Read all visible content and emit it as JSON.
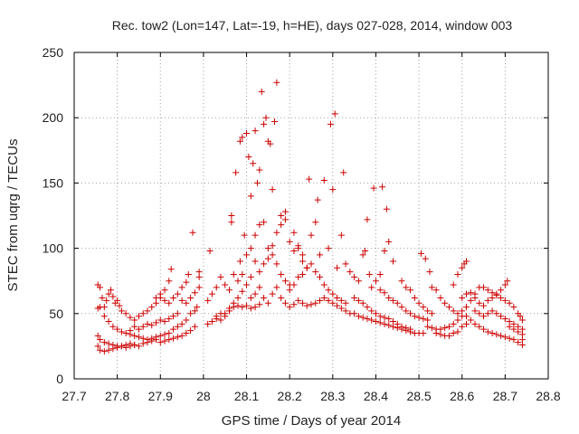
{
  "chart_data": {
    "type": "scatter",
    "title": "Rec. tow2 (Lon=147, Lat=-19, h=HE), days 027-028, 2014, window 003",
    "xlabel": "GPS time / Days of year 2014",
    "ylabel": "STEC from uqrg / TECUs",
    "xlim": [
      27.7,
      28.8
    ],
    "ylim": [
      0,
      250
    ],
    "xticks": [
      "27.7",
      "27.8",
      "27.9",
      "28",
      "28.1",
      "28.2",
      "28.3",
      "28.4",
      "28.5",
      "28.6",
      "28.7",
      "28.8"
    ],
    "yticks": [
      "0",
      "50",
      "100",
      "150",
      "200",
      "250"
    ],
    "grid": true,
    "marker": "plus",
    "color": "#cc0000",
    "points": [
      [
        27.755,
        72
      ],
      [
        27.76,
        70
      ],
      [
        27.765,
        62
      ],
      [
        27.77,
        55
      ],
      [
        27.775,
        60
      ],
      [
        27.78,
        65
      ],
      [
        27.785,
        68
      ],
      [
        27.79,
        63
      ],
      [
        27.795,
        58
      ],
      [
        27.8,
        60
      ],
      [
        27.805,
        56
      ],
      [
        27.81,
        52
      ],
      [
        27.755,
        54
      ],
      [
        27.76,
        55
      ],
      [
        27.77,
        48
      ],
      [
        27.78,
        44
      ],
      [
        27.79,
        40
      ],
      [
        27.8,
        38
      ],
      [
        27.81,
        36
      ],
      [
        27.82,
        35
      ],
      [
        27.83,
        37
      ],
      [
        27.84,
        40
      ],
      [
        27.755,
        33
      ],
      [
        27.76,
        30
      ],
      [
        27.77,
        28
      ],
      [
        27.78,
        27
      ],
      [
        27.79,
        26
      ],
      [
        27.8,
        25
      ],
      [
        27.81,
        25
      ],
      [
        27.82,
        26
      ],
      [
        27.83,
        27
      ],
      [
        27.84,
        26
      ],
      [
        27.85,
        25
      ],
      [
        27.86,
        27
      ],
      [
        27.87,
        28
      ],
      [
        27.88,
        29
      ],
      [
        27.89,
        30
      ],
      [
        27.755,
        25
      ],
      [
        27.76,
        22
      ],
      [
        27.77,
        21
      ],
      [
        27.78,
        22
      ],
      [
        27.79,
        23
      ],
      [
        27.8,
        24
      ],
      [
        27.81,
        25
      ],
      [
        27.82,
        24
      ],
      [
        27.83,
        25
      ],
      [
        27.84,
        26
      ],
      [
        27.82,
        50
      ],
      [
        27.83,
        47
      ],
      [
        27.84,
        45
      ],
      [
        27.85,
        48
      ],
      [
        27.86,
        50
      ],
      [
        27.87,
        52
      ],
      [
        27.88,
        55
      ],
      [
        27.89,
        58
      ],
      [
        27.9,
        62
      ],
      [
        27.91,
        68
      ],
      [
        27.92,
        75
      ],
      [
        27.925,
        84
      ],
      [
        27.83,
        34
      ],
      [
        27.84,
        33
      ],
      [
        27.85,
        32
      ],
      [
        27.86,
        31
      ],
      [
        27.87,
        30
      ],
      [
        27.88,
        31
      ],
      [
        27.89,
        32
      ],
      [
        27.9,
        33
      ],
      [
        27.91,
        34
      ],
      [
        27.92,
        35
      ],
      [
        27.85,
        38
      ],
      [
        27.86,
        40
      ],
      [
        27.87,
        42
      ],
      [
        27.88,
        41
      ],
      [
        27.89,
        43
      ],
      [
        27.9,
        45
      ],
      [
        27.91,
        44
      ],
      [
        27.92,
        46
      ],
      [
        27.93,
        48
      ],
      [
        27.94,
        50
      ],
      [
        27.89,
        62
      ],
      [
        27.9,
        65
      ],
      [
        27.91,
        60
      ],
      [
        27.92,
        58
      ],
      [
        27.93,
        62
      ],
      [
        27.94,
        65
      ],
      [
        27.95,
        70
      ],
      [
        27.96,
        74
      ],
      [
        27.965,
        80
      ],
      [
        27.9,
        28
      ],
      [
        27.91,
        29
      ],
      [
        27.92,
        30
      ],
      [
        27.93,
        31
      ],
      [
        27.94,
        32
      ],
      [
        27.95,
        33
      ],
      [
        27.96,
        35
      ],
      [
        27.97,
        37
      ],
      [
        27.98,
        40
      ],
      [
        27.93,
        38
      ],
      [
        27.94,
        40
      ],
      [
        27.95,
        42
      ],
      [
        27.96,
        45
      ],
      [
        27.97,
        50
      ],
      [
        27.975,
        112
      ],
      [
        27.98,
        52
      ],
      [
        27.985,
        55
      ],
      [
        27.95,
        60
      ],
      [
        27.96,
        58
      ],
      [
        27.97,
        62
      ],
      [
        27.98,
        66
      ],
      [
        27.99,
        70
      ],
      [
        27.99,
        78
      ],
      [
        27.99,
        82
      ],
      [
        28.01,
        42
      ],
      [
        28.02,
        44
      ],
      [
        28.03,
        46
      ],
      [
        28.04,
        50
      ],
      [
        28.05,
        48
      ],
      [
        28.06,
        52
      ],
      [
        28.07,
        55
      ],
      [
        28.08,
        56
      ],
      [
        28.09,
        55
      ],
      [
        28.1,
        56
      ],
      [
        28.11,
        54
      ],
      [
        28.12,
        55
      ],
      [
        28.13,
        57
      ],
      [
        28.01,
        60
      ],
      [
        28.015,
        98
      ],
      [
        28.02,
        65
      ],
      [
        28.03,
        70
      ],
      [
        28.04,
        78
      ],
      [
        28.05,
        72
      ],
      [
        28.06,
        68
      ],
      [
        28.065,
        120
      ],
      [
        28.065,
        125
      ],
      [
        28.07,
        80
      ],
      [
        28.075,
        158
      ],
      [
        28.08,
        75
      ],
      [
        28.085,
        90
      ],
      [
        28.09,
        80
      ],
      [
        28.03,
        48
      ],
      [
        28.04,
        45
      ],
      [
        28.05,
        50
      ],
      [
        28.06,
        54
      ],
      [
        28.07,
        58
      ],
      [
        28.08,
        62
      ],
      [
        28.09,
        67
      ],
      [
        28.1,
        72
      ],
      [
        28.11,
        78
      ],
      [
        28.12,
        90
      ],
      [
        28.085,
        182
      ],
      [
        28.09,
        185
      ],
      [
        28.095,
        110
      ],
      [
        28.1,
        188
      ],
      [
        28.105,
        170
      ],
      [
        28.11,
        140
      ],
      [
        28.115,
        165
      ],
      [
        28.12,
        190
      ],
      [
        28.125,
        150
      ],
      [
        28.13,
        160
      ],
      [
        28.135,
        220
      ],
      [
        28.14,
        195
      ],
      [
        28.145,
        200
      ],
      [
        28.15,
        182
      ],
      [
        28.155,
        180
      ],
      [
        28.16,
        145
      ],
      [
        28.165,
        197
      ],
      [
        28.17,
        227
      ],
      [
        28.11,
        62
      ],
      [
        28.12,
        65
      ],
      [
        28.13,
        70
      ],
      [
        28.14,
        62
      ],
      [
        28.15,
        58
      ],
      [
        28.16,
        65
      ],
      [
        28.17,
        70
      ],
      [
        28.18,
        62
      ],
      [
        28.19,
        58
      ],
      [
        28.2,
        55
      ],
      [
        28.21,
        57
      ],
      [
        28.22,
        60
      ],
      [
        28.1,
        95
      ],
      [
        28.11,
        100
      ],
      [
        28.12,
        110
      ],
      [
        28.13,
        118
      ],
      [
        28.14,
        120
      ],
      [
        28.15,
        100
      ],
      [
        28.16,
        95
      ],
      [
        28.17,
        88
      ],
      [
        28.18,
        80
      ],
      [
        28.19,
        75
      ],
      [
        28.2,
        72
      ],
      [
        28.13,
        82
      ],
      [
        28.14,
        88
      ],
      [
        28.15,
        92
      ],
      [
        28.16,
        102
      ],
      [
        28.17,
        112
      ],
      [
        28.18,
        118
      ],
      [
        28.19,
        122
      ],
      [
        28.2,
        105
      ],
      [
        28.21,
        98
      ],
      [
        28.22,
        100
      ],
      [
        28.23,
        95
      ],
      [
        28.18,
        125
      ],
      [
        28.19,
        128
      ],
      [
        28.21,
        112
      ],
      [
        28.22,
        102
      ],
      [
        28.23,
        90
      ],
      [
        28.24,
        85
      ],
      [
        28.245,
        153
      ],
      [
        28.25,
        110
      ],
      [
        28.26,
        120
      ],
      [
        28.265,
        137
      ],
      [
        28.27,
        95
      ],
      [
        28.28,
        152
      ],
      [
        28.29,
        100
      ],
      [
        28.295,
        195
      ],
      [
        28.3,
        145
      ],
      [
        28.305,
        203
      ],
      [
        28.31,
        85
      ],
      [
        28.32,
        110
      ],
      [
        28.325,
        158
      ],
      [
        28.2,
        68
      ],
      [
        28.21,
        72
      ],
      [
        28.22,
        78
      ],
      [
        28.23,
        80
      ],
      [
        28.24,
        85
      ],
      [
        28.25,
        88
      ],
      [
        28.26,
        82
      ],
      [
        28.27,
        78
      ],
      [
        28.28,
        72
      ],
      [
        28.29,
        68
      ],
      [
        28.3,
        65
      ],
      [
        28.31,
        62
      ],
      [
        28.32,
        60
      ],
      [
        28.33,
        58
      ],
      [
        28.23,
        58
      ],
      [
        28.24,
        56
      ],
      [
        28.25,
        57
      ],
      [
        28.26,
        58
      ],
      [
        28.27,
        60
      ],
      [
        28.28,
        62
      ],
      [
        28.29,
        60
      ],
      [
        28.3,
        58
      ],
      [
        28.31,
        56
      ],
      [
        28.32,
        54
      ],
      [
        28.33,
        52
      ],
      [
        28.34,
        50
      ],
      [
        28.33,
        88
      ],
      [
        28.34,
        82
      ],
      [
        28.35,
        78
      ],
      [
        28.36,
        75
      ],
      [
        28.37,
        95
      ],
      [
        28.375,
        98
      ],
      [
        28.38,
        122
      ],
      [
        28.385,
        80
      ],
      [
        28.39,
        70
      ],
      [
        28.395,
        146
      ],
      [
        28.4,
        75
      ],
      [
        28.41,
        80
      ],
      [
        28.415,
        147
      ],
      [
        28.42,
        98
      ],
      [
        28.425,
        130
      ],
      [
        28.43,
        105
      ],
      [
        28.44,
        90
      ],
      [
        28.35,
        62
      ],
      [
        28.36,
        60
      ],
      [
        28.37,
        58
      ],
      [
        28.38,
        55
      ],
      [
        28.39,
        52
      ],
      [
        28.4,
        50
      ],
      [
        28.41,
        48
      ],
      [
        28.42,
        47
      ],
      [
        28.43,
        46
      ],
      [
        28.44,
        44
      ],
      [
        28.45,
        42
      ],
      [
        28.46,
        40
      ],
      [
        28.47,
        39
      ],
      [
        28.48,
        38
      ],
      [
        28.35,
        50
      ],
      [
        28.36,
        48
      ],
      [
        28.37,
        47
      ],
      [
        28.38,
        46
      ],
      [
        28.39,
        45
      ],
      [
        28.4,
        44
      ],
      [
        28.41,
        43
      ],
      [
        28.42,
        42
      ],
      [
        28.43,
        41
      ],
      [
        28.44,
        40
      ],
      [
        28.45,
        39
      ],
      [
        28.46,
        38
      ],
      [
        28.47,
        37
      ],
      [
        28.48,
        36
      ],
      [
        28.49,
        35
      ],
      [
        28.5,
        35
      ],
      [
        28.51,
        35
      ],
      [
        28.41,
        68
      ],
      [
        28.42,
        66
      ],
      [
        28.43,
        62
      ],
      [
        28.44,
        60
      ],
      [
        28.45,
        58
      ],
      [
        28.46,
        55
      ],
      [
        28.47,
        52
      ],
      [
        28.48,
        50
      ],
      [
        28.49,
        48
      ],
      [
        28.5,
        47
      ],
      [
        28.51,
        46
      ],
      [
        28.52,
        45
      ],
      [
        28.46,
        75
      ],
      [
        28.47,
        70
      ],
      [
        28.48,
        68
      ],
      [
        28.49,
        62
      ],
      [
        28.5,
        58
      ],
      [
        28.505,
        96
      ],
      [
        28.51,
        55
      ],
      [
        28.515,
        92
      ],
      [
        28.52,
        52
      ],
      [
        28.525,
        82
      ],
      [
        28.53,
        50
      ],
      [
        28.52,
        40
      ],
      [
        28.53,
        39
      ],
      [
        28.54,
        38
      ],
      [
        28.55,
        38
      ],
      [
        28.56,
        39
      ],
      [
        28.57,
        40
      ],
      [
        28.58,
        42
      ],
      [
        28.59,
        45
      ],
      [
        28.6,
        48
      ],
      [
        28.53,
        70
      ],
      [
        28.54,
        68
      ],
      [
        28.55,
        62
      ],
      [
        28.56,
        58
      ],
      [
        28.57,
        55
      ],
      [
        28.58,
        52
      ],
      [
        28.59,
        50
      ],
      [
        28.6,
        52
      ],
      [
        28.61,
        55
      ],
      [
        28.62,
        60
      ],
      [
        28.63,
        65
      ],
      [
        28.64,
        70
      ],
      [
        28.54,
        35
      ],
      [
        28.55,
        34
      ],
      [
        28.56,
        33
      ],
      [
        28.57,
        33
      ],
      [
        28.58,
        35
      ],
      [
        28.59,
        36
      ],
      [
        28.6,
        40
      ],
      [
        28.61,
        42
      ],
      [
        28.58,
        72
      ],
      [
        28.59,
        80
      ],
      [
        28.6,
        85
      ],
      [
        28.605,
        88
      ],
      [
        28.61,
        90
      ],
      [
        28.6,
        62
      ],
      [
        28.61,
        65
      ],
      [
        28.62,
        66
      ],
      [
        28.63,
        62
      ],
      [
        28.64,
        58
      ],
      [
        28.65,
        56
      ],
      [
        28.66,
        60
      ],
      [
        28.67,
        62
      ],
      [
        28.68,
        65
      ],
      [
        28.69,
        68
      ],
      [
        28.7,
        72
      ],
      [
        28.705,
        75
      ],
      [
        28.61,
        48
      ],
      [
        28.62,
        45
      ],
      [
        28.63,
        42
      ],
      [
        28.64,
        40
      ],
      [
        28.65,
        38
      ],
      [
        28.66,
        36
      ],
      [
        28.67,
        35
      ],
      [
        28.68,
        34
      ],
      [
        28.69,
        33
      ],
      [
        28.7,
        32
      ],
      [
        28.71,
        31
      ],
      [
        28.72,
        30
      ],
      [
        28.73,
        28
      ],
      [
        28.74,
        26
      ],
      [
        28.63,
        52
      ],
      [
        28.64,
        50
      ],
      [
        28.65,
        48
      ],
      [
        28.66,
        50
      ],
      [
        28.67,
        52
      ],
      [
        28.68,
        50
      ],
      [
        28.69,
        48
      ],
      [
        28.7,
        46
      ],
      [
        28.71,
        44
      ],
      [
        28.72,
        42
      ],
      [
        28.73,
        40
      ],
      [
        28.74,
        38
      ],
      [
        28.65,
        70
      ],
      [
        28.66,
        68
      ],
      [
        28.67,
        66
      ],
      [
        28.68,
        64
      ],
      [
        28.69,
        62
      ],
      [
        28.7,
        60
      ],
      [
        28.71,
        58
      ],
      [
        28.72,
        55
      ],
      [
        28.73,
        50
      ],
      [
        28.735,
        48
      ],
      [
        28.74,
        45
      ],
      [
        28.71,
        40
      ],
      [
        28.72,
        38
      ],
      [
        28.73,
        36
      ],
      [
        28.74,
        34
      ],
      [
        28.74,
        30
      ]
    ]
  }
}
